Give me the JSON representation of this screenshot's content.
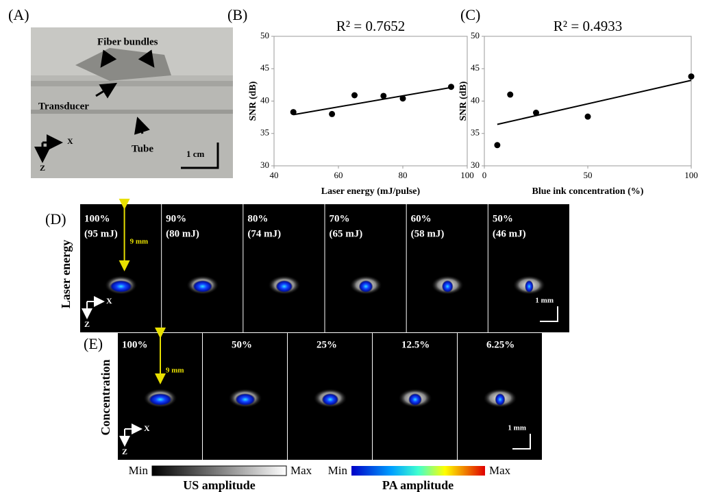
{
  "panels": {
    "labels": [
      "(A)",
      "(B)",
      "(C)",
      "(D)",
      "(E)"
    ]
  },
  "photo": {
    "annotations": [
      "Fiber bundles",
      "Transducer",
      "Tube",
      "1 cm"
    ],
    "axes": [
      "X",
      "Z"
    ]
  },
  "chart_data": [
    {
      "type": "scatter",
      "title": "R² = 0.7652",
      "xlabel": "Laser energy (mJ/pulse)",
      "ylabel": "SNR (dB)",
      "x": [
        46,
        58,
        65,
        74,
        80,
        95
      ],
      "values": [
        38.3,
        38.0,
        40.9,
        40.8,
        40.4,
        42.2
      ],
      "color": "#000000",
      "fit": {
        "x": [
          46,
          95
        ],
        "values": [
          37.9,
          42.1
        ]
      },
      "xlim": [
        40,
        100
      ],
      "xticks": [
        40,
        60,
        80,
        100
      ],
      "ylim": [
        30,
        50
      ],
      "yticks": [
        30,
        35,
        40,
        45,
        50
      ]
    },
    {
      "type": "scatter",
      "title": "R² = 0.4933",
      "xlabel": "Blue ink concentration (%)",
      "ylabel": "SNR (dB)",
      "x": [
        6.25,
        12.5,
        25,
        50,
        100
      ],
      "values": [
        33.2,
        41.0,
        38.2,
        37.6,
        43.8
      ],
      "color": "#000000",
      "fit": {
        "x": [
          6.25,
          100
        ],
        "values": [
          36.4,
          43.2
        ]
      },
      "xlim": [
        0,
        100
      ],
      "xticks": [
        0,
        50,
        100
      ],
      "ylim": [
        30,
        50
      ],
      "yticks": [
        30,
        35,
        40,
        45,
        50
      ]
    }
  ],
  "laser_energy": {
    "row_label": "Laser energy",
    "captions": [
      [
        "100%",
        "(95 mJ)"
      ],
      [
        "90%",
        "(80 mJ)"
      ],
      [
        "80%",
        "(74 mJ)"
      ],
      [
        "70%",
        "(65 mJ)"
      ],
      [
        "60%",
        "(58 mJ)"
      ],
      [
        "50%",
        "(46 mJ)"
      ]
    ],
    "depth": "9 mm",
    "scale": "1 mm",
    "axes": [
      "X",
      "Z"
    ]
  },
  "concentration": {
    "row_label": "Concentration",
    "captions": [
      "100%",
      "50%",
      "25%",
      "12.5%",
      "6.25%"
    ],
    "depth": "9 mm",
    "scale": "1 mm",
    "axes": [
      "X",
      "Z"
    ]
  },
  "colorbars": [
    {
      "min": "Min",
      "max": "Max",
      "label": "US amplitude"
    },
    {
      "min": "Min",
      "max": "Max",
      "label": "PA amplitude"
    }
  ]
}
